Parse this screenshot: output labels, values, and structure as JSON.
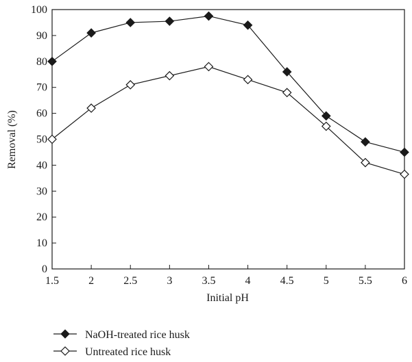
{
  "chart_data": {
    "type": "line",
    "title": "",
    "xlabel": "Initial pH",
    "ylabel": "Removal (%)",
    "x": [
      1.5,
      2,
      2.5,
      3,
      3.5,
      4,
      4.5,
      5,
      5.5,
      6
    ],
    "x_tick_labels": [
      "1.5",
      "2",
      "2.5",
      "3",
      "3.5",
      "4",
      "4.5",
      "5",
      "5.5",
      "6"
    ],
    "xlim": [
      1.5,
      6
    ],
    "ylim": [
      0,
      100
    ],
    "y_ticks": [
      0,
      10,
      20,
      30,
      40,
      50,
      60,
      70,
      80,
      90,
      100
    ],
    "y_tick_labels": [
      "0",
      "10",
      "20",
      "30",
      "40",
      "50",
      "60",
      "70",
      "80",
      "90",
      "100"
    ],
    "grid": false,
    "legend_position": "bottom-left, below plot",
    "series": [
      {
        "name": "NaOH-treated rice husk",
        "marker": "filled-diamond",
        "color": "#1a1a1a",
        "values": [
          80,
          91,
          95,
          95.5,
          97.5,
          94,
          76,
          59,
          49,
          45
        ]
      },
      {
        "name": "Untreated rice husk",
        "marker": "open-diamond",
        "color": "#1a1a1a",
        "values": [
          50,
          62,
          71,
          74.5,
          78,
          73,
          68,
          55,
          41,
          36.5
        ]
      }
    ]
  }
}
